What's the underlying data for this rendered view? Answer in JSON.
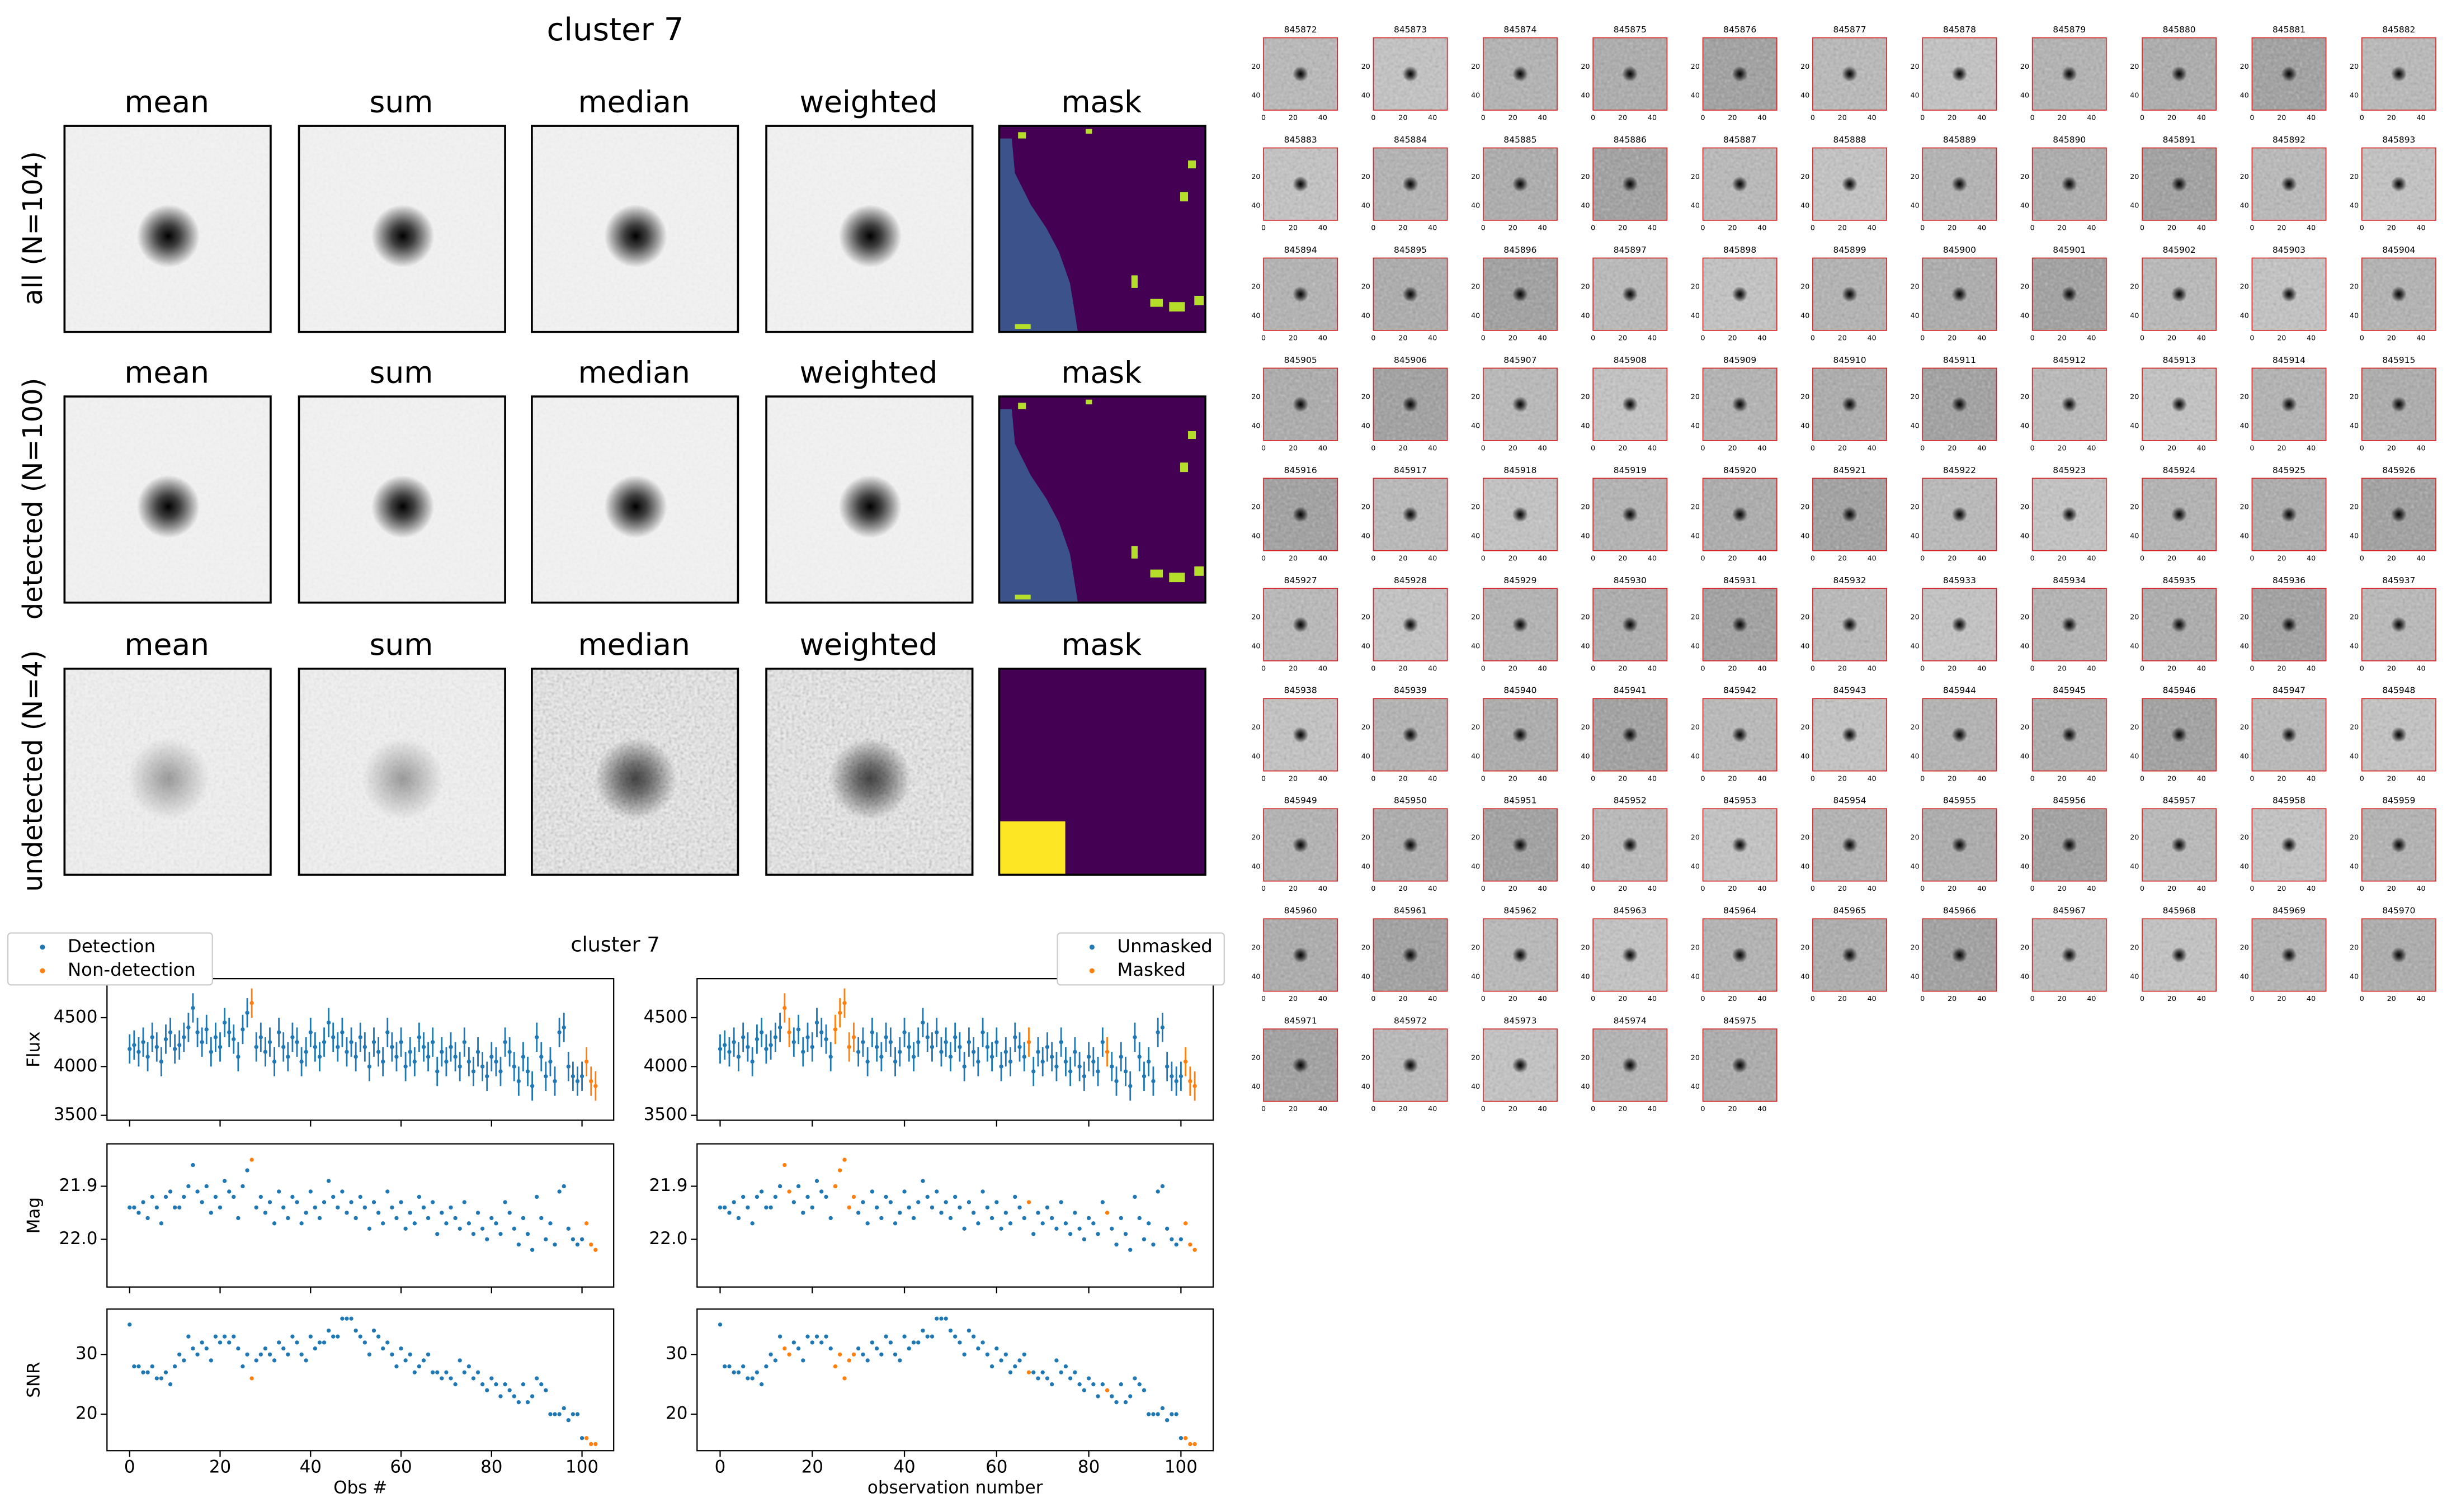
{
  "stamps": {
    "title": "cluster 7",
    "columns": [
      "mean",
      "sum",
      "median",
      "weighted",
      "mask"
    ],
    "rows": [
      "all (N=104)",
      "detected (N=100)",
      "undetected (N=4)"
    ]
  },
  "chart_data": {
    "type": "scatter",
    "title": "cluster 7",
    "x": [
      0,
      1,
      2,
      3,
      4,
      5,
      6,
      7,
      8,
      9,
      10,
      11,
      12,
      13,
      14,
      15,
      16,
      17,
      18,
      19,
      20,
      21,
      22,
      23,
      24,
      25,
      26,
      27,
      28,
      29,
      30,
      31,
      32,
      33,
      34,
      35,
      36,
      37,
      38,
      39,
      40,
      41,
      42,
      43,
      44,
      45,
      46,
      47,
      48,
      49,
      50,
      51,
      52,
      53,
      54,
      55,
      56,
      57,
      58,
      59,
      60,
      61,
      62,
      63,
      64,
      65,
      66,
      67,
      68,
      69,
      70,
      71,
      72,
      73,
      74,
      75,
      76,
      77,
      78,
      79,
      80,
      81,
      82,
      83,
      84,
      85,
      86,
      87,
      88,
      89,
      90,
      91,
      92,
      93,
      94,
      95,
      96,
      97,
      98,
      99,
      100,
      101,
      102,
      103
    ],
    "xlim": [
      -5,
      107
    ],
    "xticks": [
      0,
      20,
      40,
      60,
      80,
      100
    ],
    "xlabels": [
      "Obs #",
      "observation number"
    ],
    "panels": [
      {
        "ylabel": "Flux",
        "ylim": [
          3450,
          4900
        ],
        "yticks": [
          3500,
          4000,
          4500
        ],
        "error": 150,
        "values": [
          4180,
          4220,
          4150,
          4250,
          4100,
          4300,
          4200,
          4050,
          4280,
          4350,
          4180,
          4220,
          4300,
          4400,
          4600,
          4350,
          4250,
          4380,
          4150,
          4300,
          4200,
          4450,
          4350,
          4280,
          4100,
          4380,
          4550,
          4650,
          4200,
          4300,
          4150,
          4250,
          4050,
          4350,
          4200,
          4100,
          4300,
          4250,
          4050,
          4150,
          4350,
          4200,
          4100,
          4250,
          4450,
          4300,
          4200,
          4350,
          4150,
          4250,
          4100,
          4300,
          4200,
          4000,
          4250,
          4150,
          4050,
          4350,
          4200,
          4100,
          4250,
          4000,
          4150,
          4050,
          4300,
          4200,
          4100,
          4250,
          3950,
          4150,
          4050,
          4200,
          4100,
          4000,
          4250,
          4050,
          3950,
          4150,
          4000,
          3900,
          4100,
          4050,
          3950,
          4250,
          4150,
          4000,
          3850,
          4100,
          3950,
          3800,
          4300,
          4100,
          3900,
          4050,
          3850,
          4350,
          4400,
          4000,
          3900,
          3850,
          3900,
          4050,
          3850,
          3800
        ]
      },
      {
        "ylabel": "Mag",
        "ylim": [
          22.09,
          21.82
        ],
        "yticks": [
          21.9,
          {
            "value": 22,
            "label": "22.0"
          }
        ],
        "values": [
          21.94,
          21.94,
          21.95,
          21.93,
          21.96,
          21.92,
          21.94,
          21.97,
          21.92,
          21.91,
          21.94,
          21.94,
          21.92,
          21.9,
          21.86,
          21.91,
          21.93,
          21.9,
          21.95,
          21.92,
          21.94,
          21.89,
          21.91,
          21.92,
          21.96,
          21.9,
          21.87,
          21.85,
          21.94,
          21.92,
          21.95,
          21.93,
          21.97,
          21.91,
          21.94,
          21.96,
          21.92,
          21.93,
          21.97,
          21.95,
          21.91,
          21.94,
          21.96,
          21.93,
          21.89,
          21.92,
          21.94,
          21.91,
          21.95,
          21.93,
          21.96,
          21.92,
          21.94,
          21.98,
          21.93,
          21.95,
          21.97,
          21.91,
          21.94,
          21.96,
          21.93,
          21.98,
          21.95,
          21.97,
          21.92,
          21.94,
          21.96,
          21.93,
          21.99,
          21.95,
          21.97,
          21.94,
          21.96,
          21.98,
          21.93,
          21.97,
          21.99,
          21.95,
          21.98,
          22.0,
          21.96,
          21.97,
          21.99,
          21.93,
          21.95,
          21.98,
          22.01,
          21.96,
          21.99,
          22.02,
          21.92,
          21.96,
          22.0,
          21.97,
          22.01,
          21.91,
          21.9,
          21.98,
          22.0,
          22.01,
          22.0,
          21.97,
          22.01,
          22.02
        ]
      },
      {
        "ylabel": "SNR",
        "ylim": [
          13.9,
          37.6
        ],
        "yticks": [
          20,
          30
        ],
        "values": [
          35,
          28,
          28,
          27,
          27,
          28,
          26,
          26,
          27,
          25,
          28,
          30,
          29,
          33,
          31,
          30,
          32,
          31,
          29,
          33,
          32,
          33,
          32,
          33,
          31,
          28,
          30,
          26,
          29,
          30,
          31,
          30,
          29,
          32,
          31,
          30,
          33,
          32,
          30,
          29,
          33,
          31,
          32,
          32,
          34,
          33,
          33,
          36,
          36,
          36,
          34,
          33,
          32,
          30,
          34,
          33,
          31,
          32,
          30,
          28,
          31,
          29,
          30,
          27,
          28,
          29,
          30,
          27,
          27,
          26,
          27,
          26,
          25,
          29,
          27,
          28,
          26,
          27,
          25,
          24,
          26,
          25,
          23,
          25,
          24,
          23,
          22,
          25,
          22,
          23,
          26,
          25,
          24,
          20,
          20,
          20,
          21,
          19,
          20,
          20,
          16,
          16,
          15,
          15
        ]
      }
    ],
    "legends": [
      {
        "loc": "upper left",
        "series": [
          {
            "name": "Detection",
            "color": "#1f77b4"
          },
          {
            "name": "Non-detection",
            "color": "#ff7f0e",
            "indices": [
              27,
              101,
              102,
              103
            ]
          }
        ]
      },
      {
        "loc": "upper right",
        "series": [
          {
            "name": "Unmasked",
            "color": "#1f77b4"
          },
          {
            "name": "Masked",
            "color": "#ff7f0e",
            "indices": [
              14,
              15,
              25,
              26,
              27,
              28,
              29,
              67,
              84,
              101,
              102,
              103
            ]
          }
        ]
      }
    ]
  },
  "thumbnails": {
    "ticks": [
      0,
      20,
      40
    ],
    "ids": [
      845872,
      845873,
      845874,
      845875,
      845876,
      845877,
      845878,
      845879,
      845880,
      845881,
      845882,
      845883,
      845884,
      845885,
      845886,
      845887,
      845888,
      845889,
      845890,
      845891,
      845892,
      845893,
      845894,
      845895,
      845896,
      845897,
      845898,
      845899,
      845900,
      845901,
      845902,
      845903,
      845904,
      845905,
      845906,
      845907,
      845908,
      845909,
      845910,
      845911,
      845912,
      845913,
      845914,
      845915,
      845916,
      845917,
      845918,
      845919,
      845920,
      845921,
      845922,
      845923,
      845924,
      845925,
      845926,
      845927,
      845928,
      845929,
      845930,
      845931,
      845932,
      845933,
      845934,
      845935,
      845936,
      845937,
      845938,
      845939,
      845940,
      845941,
      845942,
      845943,
      845944,
      845945,
      845946,
      845947,
      845948,
      845949,
      845950,
      845951,
      845952,
      845953,
      845954,
      845955,
      845956,
      845957,
      845958,
      845959,
      845960,
      845961,
      845962,
      845963,
      845964,
      845965,
      845966,
      845967,
      845968,
      845969,
      845970,
      845971,
      845972,
      845973,
      845974,
      845975
    ]
  }
}
